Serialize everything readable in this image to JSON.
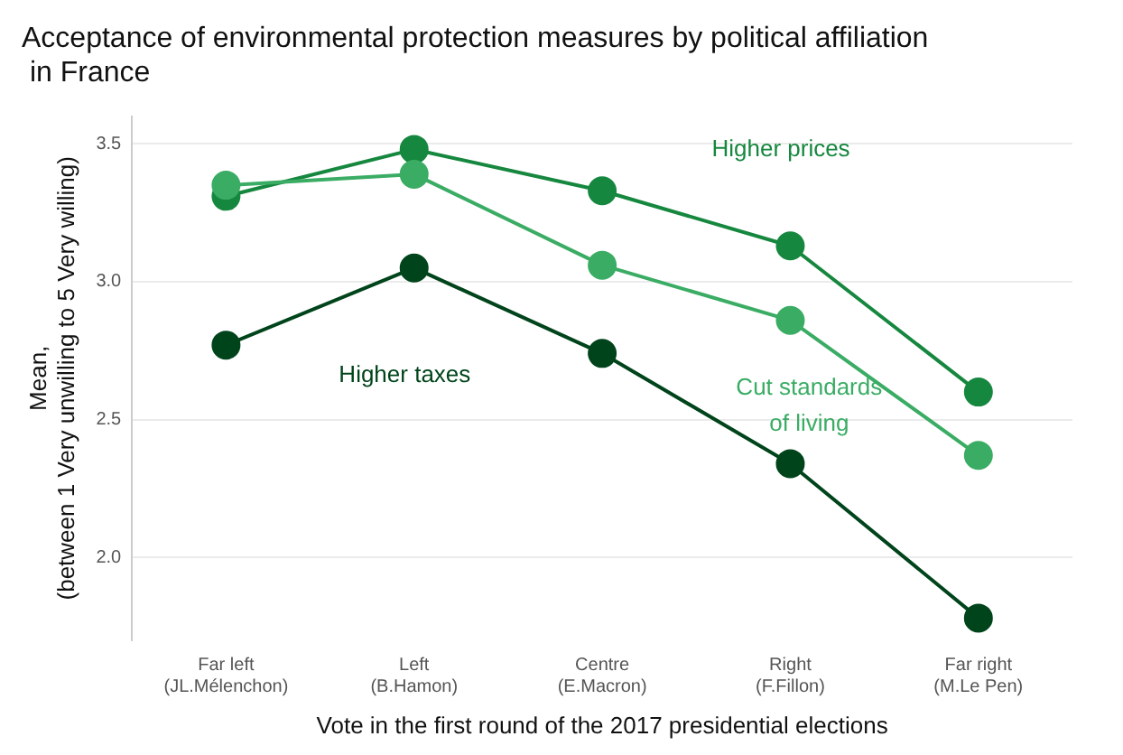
{
  "chart_data": {
    "type": "line",
    "title": "Acceptance of environmental protection measures by political affiliation\n in France",
    "xlabel": "Vote in the first round of the 2017 presidential elections",
    "ylabel": "Mean,\n(between 1 Very unwilling to 5 Very willing)",
    "categories": [
      "Far left\n(JL.Mélenchon)",
      "Left\n(B.Hamon)",
      "Centre\n(E.Macron)",
      "Right\n(F.Fillon)",
      "Far right\n(M.Le Pen)"
    ],
    "series": [
      {
        "name": "Higher prices",
        "color": "#16873e",
        "values": [
          3.31,
          3.48,
          3.33,
          3.13,
          2.6
        ]
      },
      {
        "name": "Cut standards\nof living",
        "color": "#3aac64",
        "values": [
          3.35,
          3.39,
          3.06,
          2.86,
          2.37
        ]
      },
      {
        "name": "Higher taxes",
        "color": "#00441b",
        "values": [
          2.77,
          3.05,
          2.74,
          2.34,
          1.78
        ]
      }
    ],
    "ylim": [
      1.7,
      3.6
    ],
    "yticks": [
      {
        "value": 2,
        "label": "2.0"
      },
      {
        "value": 2.5,
        "label": "2.5"
      },
      {
        "value": 3,
        "label": "3.0"
      },
      {
        "value": 3.5,
        "label": "3.5"
      }
    ],
    "grid": "y",
    "marker": "circle",
    "line_style": "solid",
    "legend": false
  }
}
